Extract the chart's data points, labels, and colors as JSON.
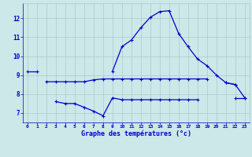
{
  "xlabel": "Graphe des températures (°c)",
  "bg_color": "#cce8e8",
  "grid_color": "#aacccc",
  "line_color": "#0000cc",
  "hours": [
    0,
    1,
    2,
    3,
    4,
    5,
    6,
    7,
    8,
    9,
    10,
    11,
    12,
    13,
    14,
    15,
    16,
    17,
    18,
    19,
    20,
    21,
    22,
    23
  ],
  "temp_main": [
    9.2,
    9.2,
    null,
    null,
    null,
    null,
    null,
    null,
    null,
    9.2,
    10.5,
    10.85,
    11.5,
    12.05,
    12.35,
    12.4,
    11.2,
    10.5,
    9.85,
    9.5,
    9.0,
    8.6,
    8.5,
    7.8
  ],
  "temp_mid": [
    null,
    null,
    8.65,
    8.65,
    8.65,
    8.65,
    8.65,
    8.75,
    8.8,
    8.8,
    8.8,
    8.8,
    8.8,
    8.8,
    8.8,
    8.8,
    8.8,
    8.8,
    8.8,
    8.8,
    null,
    8.6,
    8.5,
    null
  ],
  "temp_low": [
    null,
    null,
    null,
    7.6,
    7.5,
    7.5,
    7.3,
    7.1,
    6.85,
    7.8,
    7.7,
    7.7,
    7.7,
    7.7,
    7.7,
    7.7,
    7.7,
    7.7,
    7.7,
    null,
    null,
    null,
    7.8,
    7.8
  ],
  "ylim": [
    6.5,
    12.8
  ],
  "yticks": [
    7,
    8,
    9,
    10,
    11,
    12
  ],
  "xlim": [
    -0.5,
    23.5
  ],
  "xticks": [
    0,
    1,
    2,
    3,
    4,
    5,
    6,
    7,
    8,
    9,
    10,
    11,
    12,
    13,
    14,
    15,
    16,
    17,
    18,
    19,
    20,
    21,
    22,
    23
  ]
}
